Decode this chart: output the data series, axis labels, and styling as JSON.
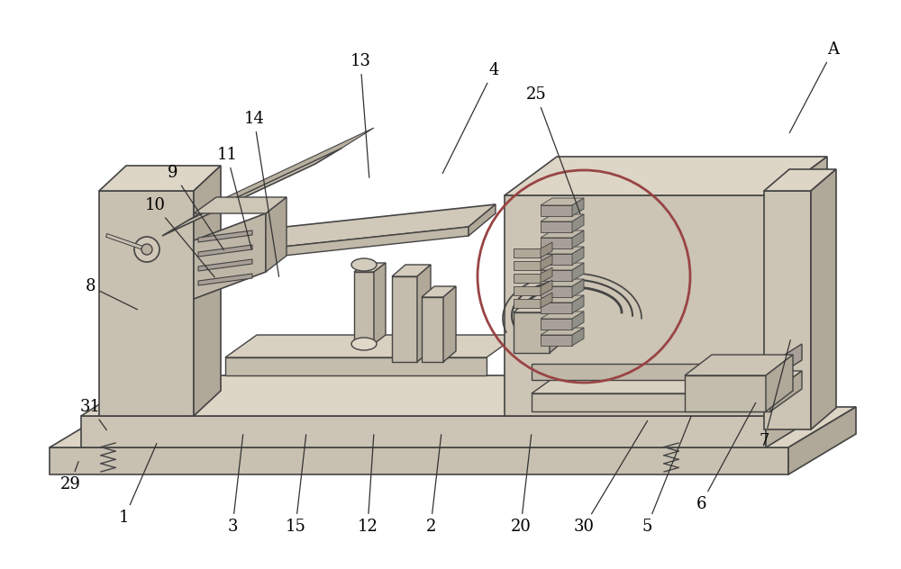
{
  "fig_width": 10.0,
  "fig_height": 6.32,
  "bg_color": "#ffffff",
  "line_color": "#444444",
  "label_color": "#000000",
  "circle_color": "#994444",
  "labels_data": [
    [
      "A",
      925,
      55,
      875,
      150
    ],
    [
      "25",
      595,
      105,
      645,
      240
    ],
    [
      "4",
      548,
      78,
      490,
      195
    ],
    [
      "13",
      400,
      68,
      410,
      200
    ],
    [
      "14",
      282,
      132,
      310,
      310
    ],
    [
      "11",
      252,
      172,
      280,
      280
    ],
    [
      "9",
      192,
      192,
      250,
      280
    ],
    [
      "10",
      172,
      228,
      240,
      310
    ],
    [
      "8",
      100,
      318,
      155,
      345
    ],
    [
      "31",
      100,
      452,
      120,
      480
    ],
    [
      "29",
      78,
      538,
      88,
      510
    ],
    [
      "1",
      138,
      575,
      175,
      490
    ],
    [
      "3",
      258,
      585,
      270,
      480
    ],
    [
      "15",
      328,
      585,
      340,
      480
    ],
    [
      "12",
      408,
      585,
      415,
      480
    ],
    [
      "2",
      478,
      585,
      490,
      480
    ],
    [
      "20",
      578,
      585,
      590,
      480
    ],
    [
      "30",
      648,
      585,
      720,
      465
    ],
    [
      "5",
      718,
      585,
      768,
      460
    ],
    [
      "6",
      778,
      560,
      840,
      445
    ],
    [
      "7",
      848,
      490,
      878,
      375
    ]
  ]
}
